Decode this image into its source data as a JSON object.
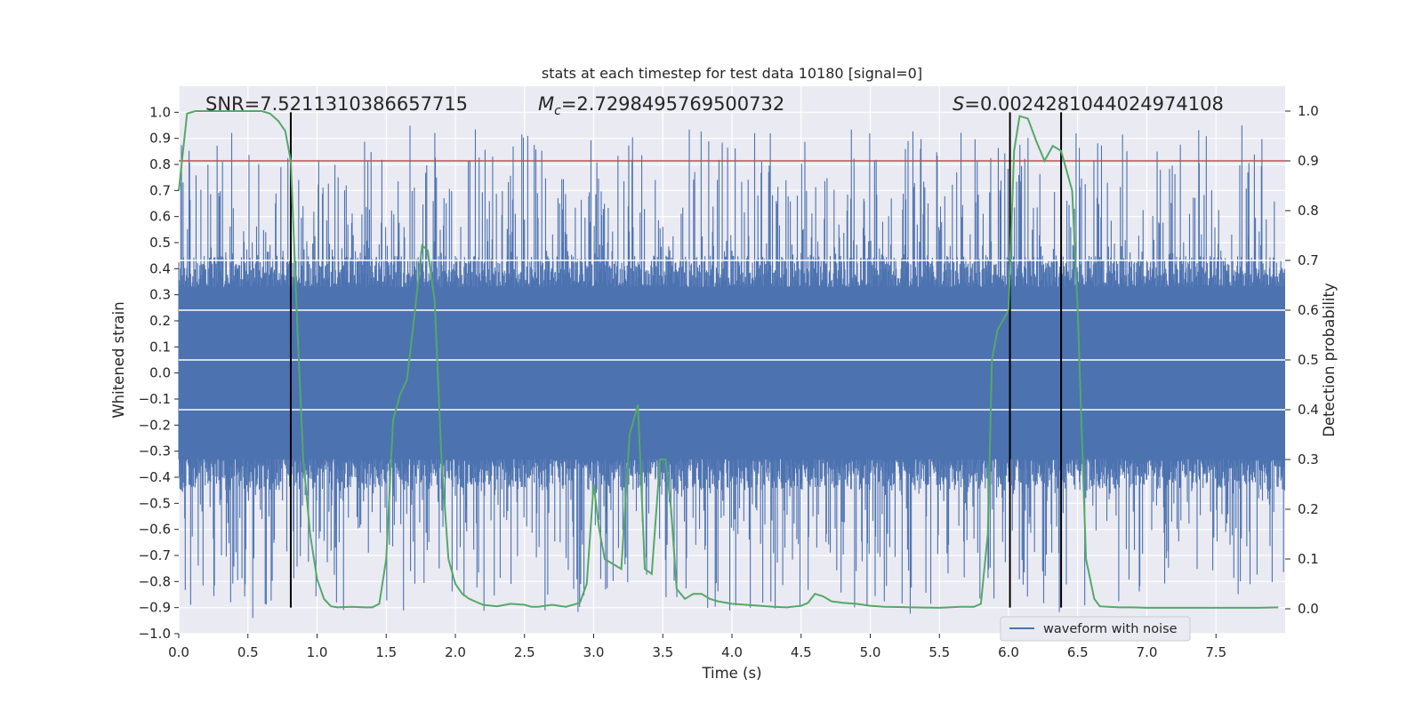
{
  "chart_data": {
    "type": "line",
    "title": "stats at each timestep for test data 10180 [signal=0]",
    "xlabel": "Time (s)",
    "ylabel": "Whitened strain",
    "y2label": "Detection probability",
    "xlim": [
      0.0,
      8.0
    ],
    "ylim": [
      -1.0,
      1.1
    ],
    "y2lim": [
      -0.05,
      1.05
    ],
    "x_ticks": [
      0.0,
      0.5,
      1.0,
      1.5,
      2.0,
      2.5,
      3.0,
      3.5,
      4.0,
      4.5,
      5.0,
      5.5,
      6.0,
      6.5,
      7.0,
      7.5
    ],
    "x_tick_labels": [
      "0.0",
      "0.5",
      "1.0",
      "1.5",
      "2.0",
      "2.5",
      "3.0",
      "3.5",
      "4.0",
      "4.5",
      "5.0",
      "5.5",
      "6.0",
      "6.5",
      "7.0",
      "7.5"
    ],
    "y_ticks": [
      -1.0,
      -0.9,
      -0.8,
      -0.7,
      -0.6,
      -0.5,
      -0.4,
      -0.3,
      -0.2,
      -0.1,
      0.0,
      0.1,
      0.2,
      0.3,
      0.4,
      0.5,
      0.6,
      0.7,
      0.8,
      0.9,
      1.0
    ],
    "y_tick_labels": [
      "−1.0",
      "−0.9",
      "−0.8",
      "−0.7",
      "−0.6",
      "−0.5",
      "−0.4",
      "−0.3",
      "−0.2",
      "−0.1",
      "0.0",
      "0.1",
      "0.2",
      "0.3",
      "0.4",
      "0.5",
      "0.6",
      "0.7",
      "0.8",
      "0.9",
      "1.0"
    ],
    "y2_ticks": [
      0.0,
      0.1,
      0.2,
      0.3,
      0.4,
      0.5,
      0.6,
      0.7,
      0.8,
      0.9,
      1.0
    ],
    "y2_tick_labels": [
      "0.0",
      "0.1",
      "0.2",
      "0.3",
      "0.4",
      "0.5",
      "0.6",
      "0.7",
      "0.8",
      "0.9",
      "1.0"
    ],
    "annotations": {
      "snr": "SNR=7.5211310386657715",
      "mc_symbol": "M",
      "mc_sub": "c",
      "mc_value": "=2.7298495769500732",
      "s_symbol": "S",
      "s_value": "=0.0024281044024974108"
    },
    "legend": {
      "label": "waveform with noise",
      "location": "lower-right"
    },
    "threshold": {
      "value": 0.9,
      "axis": "y2",
      "color": "#c44e52"
    },
    "vlines": [
      {
        "x": 0.81,
        "y_from": -0.9,
        "y_to": 1.0,
        "color": "#000000"
      },
      {
        "x": 6.01,
        "y_from": -0.9,
        "y_to": 1.0,
        "color": "#000000"
      },
      {
        "x": 6.38,
        "y_from": -0.9,
        "y_to": 1.0,
        "color": "#000000"
      }
    ],
    "series": [
      {
        "name": "waveform with noise",
        "axis": "y",
        "color": "#4c72b0",
        "kind": "noise",
        "core_amplitude": 0.33,
        "max_amplitude": 0.95,
        "samples": 2048,
        "seed": 10180
      },
      {
        "name": "detection probability",
        "axis": "y2",
        "color": "#55a868",
        "x": [
          0.0,
          0.06,
          0.12,
          0.2,
          0.3,
          0.4,
          0.5,
          0.6,
          0.66,
          0.72,
          0.77,
          0.81,
          0.86,
          0.9,
          0.95,
          1.0,
          1.05,
          1.1,
          1.15,
          1.25,
          1.35,
          1.4,
          1.45,
          1.5,
          1.55,
          1.6,
          1.65,
          1.7,
          1.76,
          1.8,
          1.85,
          1.9,
          1.95,
          2.0,
          2.05,
          2.1,
          2.2,
          2.3,
          2.4,
          2.5,
          2.55,
          2.6,
          2.7,
          2.8,
          2.9,
          2.95,
          3.0,
          3.04,
          3.08,
          3.14,
          3.2,
          3.26,
          3.32,
          3.37,
          3.42,
          3.48,
          3.52,
          3.56,
          3.6,
          3.66,
          3.72,
          3.78,
          3.84,
          3.9,
          4.0,
          4.1,
          4.2,
          4.3,
          4.4,
          4.5,
          4.55,
          4.6,
          4.66,
          4.72,
          4.8,
          4.9,
          5.0,
          5.1,
          5.3,
          5.5,
          5.65,
          5.75,
          5.8,
          5.85,
          5.88,
          5.92,
          5.96,
          6.0,
          6.04,
          6.08,
          6.14,
          6.2,
          6.26,
          6.32,
          6.38,
          6.42,
          6.46,
          6.5,
          6.56,
          6.62,
          6.66,
          6.72,
          6.8,
          6.9,
          7.0,
          7.2,
          7.4,
          7.6,
          7.8,
          7.95
        ],
        "values": [
          0.84,
          0.995,
          1.0,
          1.0,
          1.0,
          1.0,
          1.0,
          1.0,
          0.995,
          0.98,
          0.96,
          0.9,
          0.55,
          0.3,
          0.15,
          0.06,
          0.02,
          0.005,
          0.003,
          0.004,
          0.003,
          0.003,
          0.01,
          0.1,
          0.38,
          0.43,
          0.46,
          0.58,
          0.73,
          0.72,
          0.62,
          0.3,
          0.1,
          0.05,
          0.03,
          0.02,
          0.008,
          0.005,
          0.01,
          0.008,
          0.004,
          0.004,
          0.008,
          0.004,
          0.012,
          0.05,
          0.25,
          0.16,
          0.1,
          0.09,
          0.08,
          0.35,
          0.41,
          0.08,
          0.07,
          0.3,
          0.3,
          0.2,
          0.04,
          0.02,
          0.03,
          0.03,
          0.02,
          0.015,
          0.01,
          0.008,
          0.006,
          0.004,
          0.003,
          0.006,
          0.012,
          0.03,
          0.025,
          0.015,
          0.012,
          0.01,
          0.006,
          0.004,
          0.003,
          0.002,
          0.004,
          0.004,
          0.01,
          0.15,
          0.5,
          0.56,
          0.58,
          0.6,
          0.92,
          0.99,
          0.985,
          0.94,
          0.9,
          0.93,
          0.92,
          0.88,
          0.84,
          0.6,
          0.1,
          0.02,
          0.005,
          0.004,
          0.003,
          0.003,
          0.002,
          0.002,
          0.002,
          0.002,
          0.002,
          0.003
        ]
      }
    ]
  }
}
